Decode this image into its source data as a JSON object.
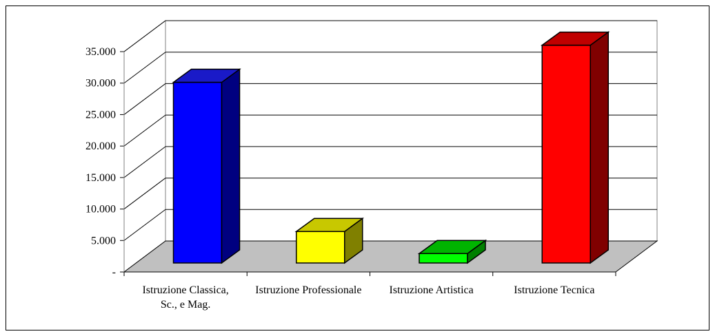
{
  "chart_data": {
    "type": "bar3d",
    "categories": [
      "Istruzione Classica, Sc., e Mag.",
      "Istruzione Professionale",
      "Istruzione Artistica",
      "Istruzione Tecnica"
    ],
    "values": [
      28700,
      5000,
      1500,
      34600
    ],
    "colors": [
      "#0000ff",
      "#ffff00",
      "#00ff00",
      "#ff0000"
    ],
    "side_colors": [
      "#000080",
      "#808000",
      "#008000",
      "#800000"
    ],
    "top_colors": [
      "#1a1ac8",
      "#c8c800",
      "#00b400",
      "#c00000"
    ],
    "ylim": [
      0,
      35000
    ],
    "yticks": [
      {
        "value": 0,
        "label": "-"
      },
      {
        "value": 5000,
        "label": "5.000"
      },
      {
        "value": 10000,
        "label": "10.000"
      },
      {
        "value": 15000,
        "label": "15.000"
      },
      {
        "value": 20000,
        "label": "20.000"
      },
      {
        "value": 25000,
        "label": "25.000"
      },
      {
        "value": 30000,
        "label": "30.000"
      },
      {
        "value": 35000,
        "label": "35.000"
      }
    ],
    "grid": true
  }
}
